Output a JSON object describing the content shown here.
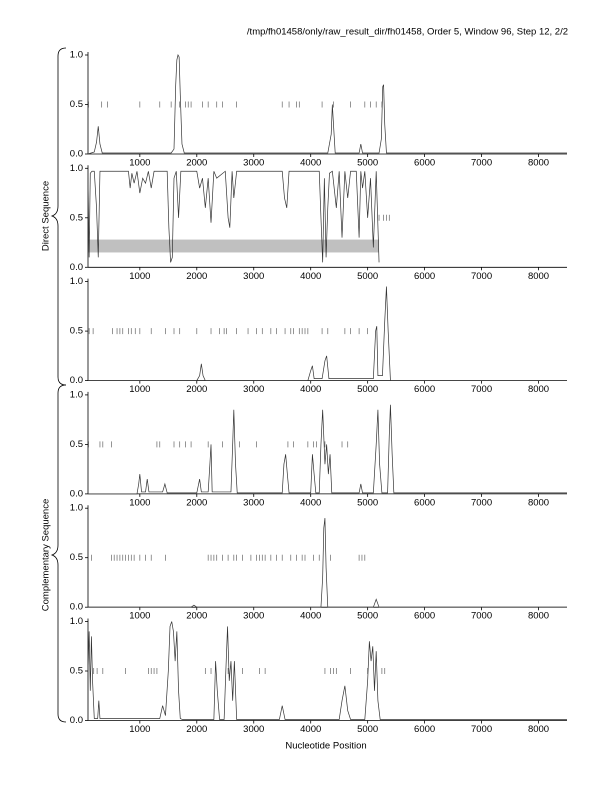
{
  "header": "/tmp/fh01458/only/raw_result_dir/fh01458, Order 5, Window 96, Step 12, 2/2",
  "direct_label": "Direct Sequence",
  "complementary_label": "Complementary Sequence",
  "x_label": "Nucleotide Position",
  "chart_data": [
    {
      "type": "line",
      "xlim": [
        90,
        8500
      ],
      "xticks": [
        1000,
        2000,
        3000,
        4000,
        5000,
        6000,
        7000,
        8000
      ],
      "ylim": [
        0,
        1
      ],
      "yticks": [
        {
          "value": 0,
          "label": "0.0"
        },
        {
          "value": 0.5,
          "label": "0.5"
        },
        {
          "value": 1,
          "label": "1.0"
        }
      ],
      "x": [
        90,
        200,
        240,
        270,
        300,
        340,
        1550,
        1600,
        1630,
        1650,
        1670,
        1690,
        1710,
        1740,
        1780,
        4300,
        4360,
        4380,
        4400,
        4430,
        4850,
        4880,
        4910,
        5200,
        5240,
        5265,
        5280,
        5300,
        5330,
        8500
      ],
      "values": [
        0,
        0.02,
        0.12,
        0.28,
        0.1,
        0.01,
        0.01,
        0.05,
        0.7,
        0.95,
        1.0,
        0.98,
        0.6,
        0.1,
        0.01,
        0.01,
        0.2,
        0.5,
        0.3,
        0.01,
        0.01,
        0.1,
        0.01,
        0.01,
        0.15,
        0.68,
        0.7,
        0.3,
        0.01,
        0.01
      ],
      "markers": [
        100,
        330,
        430,
        1000,
        1350,
        1550,
        1700,
        1800,
        1850,
        1900,
        2100,
        2200,
        2350,
        2450,
        2700,
        3500,
        3620,
        3750,
        3800,
        4200,
        4400,
        4700,
        4950,
        5050,
        5150,
        5250
      ],
      "marker_level": 0.5,
      "color": "#333333"
    },
    {
      "type": "line",
      "xlim": [
        90,
        8500
      ],
      "xticks": [
        1000,
        2000,
        3000,
        4000,
        5000,
        6000,
        7000,
        8000
      ],
      "ylim": [
        0,
        1
      ],
      "yticks": [
        {
          "value": 0,
          "label": "0.0"
        },
        {
          "value": 0.5,
          "label": "0.5"
        },
        {
          "value": 1,
          "label": "1.0"
        }
      ],
      "x": [
        90,
        110,
        130,
        160,
        200,
        240,
        270,
        300,
        330,
        360,
        800,
        830,
        860,
        900,
        950,
        1000,
        1050,
        1100,
        1150,
        1200,
        1250,
        1480,
        1510,
        1540,
        1570,
        1600,
        1640,
        1680,
        1720,
        1760,
        2000,
        2050,
        2100,
        2150,
        2200,
        2250,
        2300,
        2350,
        2500,
        2550,
        2580,
        2620,
        2650,
        2700,
        3500,
        3540,
        3580,
        3620,
        3660,
        4150,
        4180,
        4210,
        4240,
        4270,
        4300,
        4330,
        4380,
        4450,
        4500,
        4550,
        4600,
        4650,
        4700,
        4800,
        4850,
        4880,
        4910,
        4950,
        5000,
        5050,
        5100,
        5150,
        5200
      ],
      "values": [
        0.9,
        0.1,
        0.95,
        0.97,
        0.97,
        0.6,
        0.1,
        0.97,
        0.97,
        0.97,
        0.97,
        0.8,
        0.95,
        0.85,
        0.97,
        0.75,
        0.9,
        0.85,
        0.97,
        0.8,
        0.97,
        0.97,
        0.4,
        0.05,
        0.1,
        0.9,
        0.97,
        0.5,
        0.97,
        0.97,
        0.97,
        0.8,
        0.9,
        0.6,
        0.9,
        0.45,
        0.97,
        0.9,
        0.97,
        0.5,
        0.4,
        0.97,
        0.7,
        0.97,
        0.97,
        0.7,
        0.6,
        0.97,
        0.97,
        0.97,
        0.5,
        0.05,
        0.9,
        0.1,
        0.6,
        0.95,
        0.97,
        0.6,
        0.97,
        0.3,
        0.97,
        0.7,
        0.97,
        0.97,
        0.3,
        0.97,
        0.8,
        0.97,
        0.5,
        0.9,
        0.2,
        0.97,
        0.05
      ],
      "markers": [
        5200,
        5280,
        5330,
        5380
      ],
      "marker_level": 0.5,
      "color": "#333333",
      "band": {
        "x": [
          90,
          5200
        ],
        "y": [
          0.15,
          0.28
        ],
        "color": "#c0c0c0"
      }
    },
    {
      "type": "line",
      "xlim": [
        90,
        8500
      ],
      "xticks": [
        1000,
        2000,
        3000,
        4000,
        5000,
        6000,
        7000,
        8000
      ],
      "ylim": [
        0,
        1
      ],
      "yticks": [
        {
          "value": 0,
          "label": "0.0"
        },
        {
          "value": 0.5,
          "label": "0.5"
        },
        {
          "value": 1,
          "label": "1.0"
        }
      ],
      "x": [
        90,
        2000,
        2050,
        2080,
        2110,
        2150,
        3950,
        4000,
        4030,
        4060,
        4200,
        4250,
        4280,
        4320,
        5100,
        5140,
        5160,
        5180,
        5260,
        5300,
        5330,
        5360,
        5400,
        8500
      ],
      "values": [
        0,
        0,
        0.05,
        0.17,
        0.05,
        0,
        0,
        0.1,
        0.15,
        0.02,
        0.02,
        0.2,
        0.25,
        0.02,
        0.02,
        0.5,
        0.55,
        0.05,
        0.05,
        0.6,
        0.95,
        0.5,
        0,
        0
      ],
      "markers": [
        110,
        180,
        520,
        600,
        650,
        700,
        800,
        850,
        920,
        1000,
        1200,
        1450,
        1600,
        1700,
        2000,
        2250,
        2400,
        2480,
        2520,
        2700,
        2900,
        3050,
        3150,
        3300,
        3400,
        3550,
        3650,
        3700,
        3800,
        3850,
        3900,
        3950,
        4200,
        4300,
        4600,
        4700,
        4850,
        5000
      ],
      "marker_level": 0.5,
      "color": "#333333"
    },
    {
      "type": "line",
      "xlim": [
        90,
        8500
      ],
      "xticks": [
        1000,
        2000,
        3000,
        4000,
        5000,
        6000,
        7000,
        8000
      ],
      "ylim": [
        0,
        1
      ],
      "yticks": [
        {
          "value": 0,
          "label": "0.0"
        },
        {
          "value": 0.5,
          "label": "0.5"
        },
        {
          "value": 1,
          "label": "1.0"
        }
      ],
      "x": [
        90,
        950,
        980,
        1000,
        1030,
        1100,
        1130,
        1160,
        1400,
        1440,
        1480,
        2000,
        2050,
        2080,
        2200,
        2230,
        2250,
        2270,
        2600,
        2630,
        2650,
        2680,
        2710,
        3500,
        3530,
        3560,
        3590,
        3620,
        4000,
        4030,
        4060,
        4090,
        4150,
        4180,
        4210,
        4250,
        4280,
        4310,
        4340,
        4370,
        4850,
        4880,
        4910,
        5100,
        5150,
        5180,
        5210,
        5250,
        5350,
        5380,
        5400,
        5430,
        5460,
        8500
      ],
      "values": [
        0,
        0,
        0.1,
        0.2,
        0.02,
        0.02,
        0.15,
        0.02,
        0.02,
        0.1,
        0.01,
        0.01,
        0.15,
        0.02,
        0.02,
        0.3,
        0.5,
        0.02,
        0.02,
        0.5,
        0.85,
        0.3,
        0.01,
        0.01,
        0.3,
        0.4,
        0.2,
        0.01,
        0.01,
        0.4,
        0.2,
        0.01,
        0.01,
        0.5,
        0.85,
        0.3,
        0.5,
        0.2,
        0.4,
        0.01,
        0.01,
        0.1,
        0.01,
        0.01,
        0.5,
        0.85,
        0.3,
        0.01,
        0.01,
        0.6,
        0.9,
        0.4,
        0.01,
        0.01
      ],
      "markers": [
        100,
        300,
        350,
        500,
        1300,
        1350,
        1600,
        1700,
        1800,
        1900,
        2200,
        2450,
        2750,
        3050,
        3600,
        3700,
        3950,
        4050,
        4100,
        4250,
        4550,
        4650
      ],
      "marker_level": 0.5,
      "color": "#333333"
    },
    {
      "type": "line",
      "xlim": [
        90,
        8500
      ],
      "xticks": [
        1000,
        2000,
        3000,
        4000,
        5000,
        6000,
        7000,
        8000
      ],
      "ylim": [
        0,
        1
      ],
      "yticks": [
        {
          "value": 0,
          "label": "0.0"
        },
        {
          "value": 0.5,
          "label": "0.5"
        },
        {
          "value": 1,
          "label": "1.0"
        }
      ],
      "x": [
        90,
        1900,
        1950,
        2000,
        4180,
        4210,
        4230,
        4250,
        4270,
        4300,
        5100,
        5150,
        5200,
        8500
      ],
      "values": [
        0,
        0,
        0.02,
        0,
        0,
        0.3,
        0.8,
        0.9,
        0.4,
        0,
        0,
        0.08,
        0,
        0
      ],
      "markers": [
        150,
        500,
        550,
        600,
        650,
        700,
        750,
        800,
        850,
        900,
        1000,
        1100,
        1200,
        1450,
        2200,
        2250,
        2300,
        2350,
        2450,
        2550,
        2650,
        2700,
        2800,
        2950,
        3050,
        3100,
        3150,
        3200,
        3300,
        3400,
        3500,
        3650,
        3750,
        3850,
        3900,
        4050,
        4150,
        4350,
        4850,
        4900,
        4950
      ],
      "marker_level": 0.5,
      "color": "#333333"
    },
    {
      "type": "line",
      "xlim": [
        90,
        8500
      ],
      "xticks": [
        1000,
        2000,
        3000,
        4000,
        5000,
        6000,
        7000,
        8000
      ],
      "ylim": [
        0,
        1
      ],
      "yticks": [
        {
          "value": 0,
          "label": "0.0"
        },
        {
          "value": 0.5,
          "label": "0.5"
        },
        {
          "value": 1,
          "label": "1.0"
        }
      ],
      "x": [
        90,
        110,
        130,
        150,
        170,
        200,
        260,
        280,
        300,
        1350,
        1400,
        1450,
        1500,
        1530,
        1560,
        1590,
        1620,
        1650,
        1680,
        1710,
        1750,
        2300,
        2330,
        2360,
        2400,
        2480,
        2510,
        2540,
        2570,
        2600,
        2630,
        2660,
        2700,
        3450,
        3500,
        3550,
        4500,
        4550,
        4600,
        4650,
        4700,
        4950,
        5000,
        5030,
        5060,
        5090,
        5120,
        5150,
        5180,
        5220,
        8500
      ],
      "values": [
        0.5,
        0.9,
        0.3,
        0.85,
        0.4,
        0.02,
        0.02,
        0.2,
        0.02,
        0.02,
        0.15,
        0.05,
        0.5,
        0.95,
        1.0,
        0.9,
        0.6,
        0.9,
        0.3,
        0.02,
        0.01,
        0.01,
        0.6,
        0.3,
        0.01,
        0.01,
        0.5,
        0.95,
        0.4,
        0.6,
        0.2,
        0.6,
        0.01,
        0.01,
        0.15,
        0.01,
        0.01,
        0.2,
        0.35,
        0.1,
        0.01,
        0.01,
        0.4,
        0.8,
        0.6,
        0.75,
        0.3,
        0.7,
        0.2,
        0.01,
        0.01
      ],
      "markers": [
        190,
        250,
        350,
        750,
        1150,
        1200,
        1250,
        1300,
        2150,
        2250,
        2550,
        2800,
        3100,
        3200,
        4250,
        4350,
        4400,
        4450,
        4700,
        5000,
        5250,
        5300
      ],
      "marker_level": 0.5,
      "color": "#333333"
    }
  ]
}
